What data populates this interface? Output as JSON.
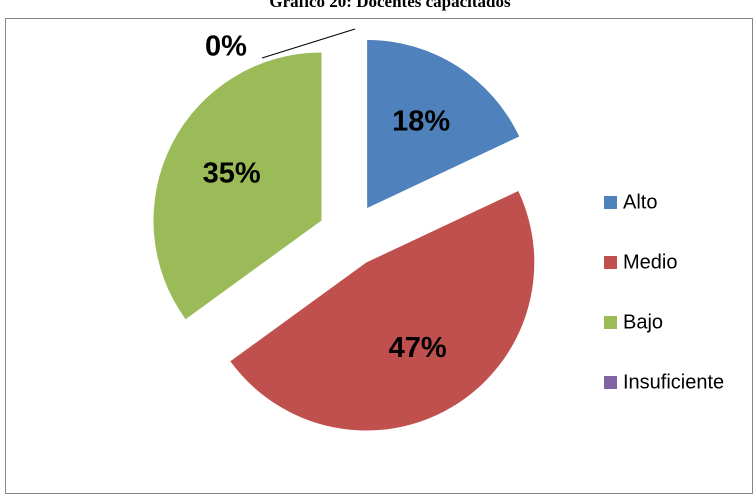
{
  "chart_data": {
    "type": "pie",
    "title": "Gráfico 20: Docentes capacitados",
    "categories": [
      "Alto",
      "Medio",
      "Bajo",
      "Insuficiente"
    ],
    "values": [
      18,
      47,
      35,
      0
    ],
    "value_labels": [
      "18%",
      "47%",
      "35%",
      "0%"
    ],
    "colors": [
      "#4f81bd",
      "#c0504d",
      "#9bbb59",
      "#8064a2"
    ],
    "legend": "right"
  }
}
